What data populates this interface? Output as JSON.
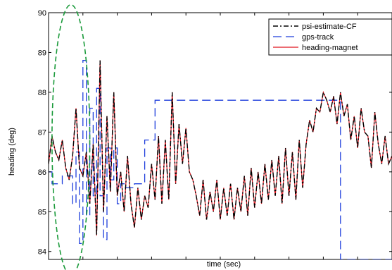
{
  "chart_data": {
    "type": "line",
    "title": "",
    "xlabel": "time (sec)",
    "ylabel": "heading (deg)",
    "xlim": [
      0,
      100
    ],
    "ylim": [
      83.8,
      90
    ],
    "yticks": [
      84,
      85,
      86,
      87,
      88,
      89,
      90
    ],
    "y_tick_labels": [
      "84",
      "85",
      "86",
      "87",
      "88",
      "89",
      "90"
    ],
    "xticks": [
      0,
      10,
      20,
      30,
      40,
      50,
      60,
      70,
      80,
      90,
      100
    ],
    "grid": false,
    "legend_position": "top-right",
    "colors": {
      "psi": "#000000",
      "gps": "#1f3fdc",
      "magnet": "#e0141e",
      "ellipse": "#1a9a3a"
    },
    "series": [
      {
        "name": "psi-estimate-CF",
        "style": "dash-dot",
        "x": [
          0,
          1,
          2,
          3,
          4,
          5,
          6,
          7,
          8,
          9,
          10,
          11,
          12,
          13,
          14,
          15,
          16,
          17,
          18,
          19,
          20,
          21,
          22,
          23,
          24,
          25,
          26,
          27,
          28,
          29,
          30,
          31,
          32,
          33,
          34,
          35,
          36,
          37,
          38,
          39,
          40,
          41,
          42,
          43,
          44,
          45,
          46,
          47,
          48,
          49,
          50,
          51,
          52,
          53,
          54,
          55,
          56,
          57,
          58,
          59,
          60,
          61,
          62,
          63,
          64,
          65,
          66,
          67,
          68,
          69,
          70,
          71,
          72,
          73,
          74,
          75,
          76,
          77,
          78,
          79,
          80,
          81,
          82,
          83,
          84,
          85,
          86,
          87,
          88,
          89,
          90,
          91,
          92,
          93,
          94,
          95,
          96,
          97,
          98,
          99,
          100
        ],
        "values": [
          86.2,
          86.9,
          86.5,
          86.3,
          86.8,
          86.1,
          85.8,
          86.4,
          87.6,
          86.1,
          85.9,
          86.5,
          85.2,
          86.7,
          84.4,
          88.8,
          85.0,
          87.4,
          85.5,
          88.0,
          85.4,
          86.0,
          85.0,
          86.4,
          85.2,
          84.6,
          85.6,
          84.8,
          85.4,
          85.1,
          86.2,
          85.3,
          86.9,
          85.2,
          86.8,
          85.3,
          88.0,
          85.7,
          87.2,
          86.2,
          87.1,
          86.0,
          85.8,
          85.4,
          84.9,
          85.8,
          84.8,
          85.5,
          85.0,
          85.8,
          84.8,
          85.6,
          84.9,
          85.7,
          84.8,
          85.6,
          85.0,
          85.9,
          84.9,
          86.1,
          85.1,
          86.0,
          85.2,
          86.2,
          85.3,
          86.3,
          85.4,
          86.4,
          85.2,
          86.6,
          85.4,
          86.5,
          85.3,
          86.8,
          85.6,
          86.7,
          87.3,
          87.0,
          87.6,
          87.5,
          88.0,
          87.8,
          87.5,
          87.9,
          87.2,
          88.0,
          87.4,
          87.7,
          86.8,
          87.4,
          86.6,
          87.6,
          87.0,
          86.9,
          86.1,
          87.5,
          86.7,
          86.2,
          86.9,
          86.2,
          86.4
        ]
      },
      {
        "name": "gps-track",
        "style": "dashed",
        "x": [
          0,
          1,
          1,
          4,
          4,
          7,
          7,
          8,
          8,
          9,
          9,
          10,
          10,
          11,
          11,
          12,
          12,
          13,
          13,
          14,
          14,
          15,
          15,
          16,
          16,
          17,
          17,
          18,
          18,
          19,
          19,
          20,
          20,
          21,
          21,
          22,
          22,
          25,
          25,
          28,
          28,
          31,
          31,
          36,
          36,
          40,
          40,
          85,
          85,
          100
        ],
        "values": [
          86.0,
          86.0,
          85.7,
          85.7,
          85.9,
          85.9,
          85.2,
          85.2,
          86.5,
          86.5,
          84.2,
          84.2,
          88.8,
          88.8,
          84.9,
          84.9,
          87.6,
          87.6,
          85.4,
          85.4,
          88.1,
          88.1,
          85.4,
          85.4,
          84.3,
          84.3,
          86.6,
          86.6,
          85.8,
          85.8,
          86.6,
          86.6,
          85.2,
          85.2,
          85.7,
          85.7,
          85.6,
          85.6,
          85.7,
          85.7,
          86.8,
          86.8,
          87.8,
          87.8,
          87.8,
          87.8,
          87.8,
          87.8,
          83.8,
          83.8
        ]
      },
      {
        "name": "heading-magnet",
        "style": "solid",
        "x": [
          0,
          1,
          2,
          3,
          4,
          5,
          6,
          7,
          8,
          9,
          10,
          11,
          12,
          13,
          14,
          15,
          16,
          17,
          18,
          19,
          20,
          21,
          22,
          23,
          24,
          25,
          26,
          27,
          28,
          29,
          30,
          31,
          32,
          33,
          34,
          35,
          36,
          37,
          38,
          39,
          40,
          41,
          42,
          43,
          44,
          45,
          46,
          47,
          48,
          49,
          50,
          51,
          52,
          53,
          54,
          55,
          56,
          57,
          58,
          59,
          60,
          61,
          62,
          63,
          64,
          65,
          66,
          67,
          68,
          69,
          70,
          71,
          72,
          73,
          74,
          75,
          76,
          77,
          78,
          79,
          80,
          81,
          82,
          83,
          84,
          85,
          86,
          87,
          88,
          89,
          90,
          91,
          92,
          93,
          94,
          95,
          96,
          97,
          98,
          99,
          100
        ],
        "values": [
          86.2,
          86.9,
          86.5,
          86.3,
          86.8,
          86.1,
          85.8,
          86.4,
          87.6,
          86.1,
          85.9,
          86.5,
          85.2,
          86.7,
          84.4,
          88.8,
          85.0,
          87.4,
          85.5,
          88.0,
          85.4,
          86.0,
          85.0,
          86.4,
          85.2,
          84.6,
          85.6,
          84.8,
          85.4,
          85.1,
          86.2,
          85.3,
          86.9,
          85.2,
          86.8,
          85.3,
          88.0,
          85.7,
          87.2,
          86.2,
          87.1,
          86.0,
          85.8,
          85.4,
          84.9,
          85.8,
          84.8,
          85.5,
          85.0,
          85.8,
          84.8,
          85.6,
          84.9,
          85.7,
          84.8,
          85.6,
          85.0,
          85.9,
          84.9,
          86.1,
          85.1,
          86.0,
          85.2,
          86.2,
          85.3,
          86.3,
          85.4,
          86.4,
          85.2,
          86.6,
          85.4,
          86.5,
          85.3,
          86.8,
          85.6,
          86.7,
          87.3,
          87.0,
          87.6,
          87.5,
          88.0,
          87.8,
          87.5,
          87.9,
          87.2,
          88.0,
          87.4,
          87.7,
          86.8,
          87.4,
          86.6,
          87.6,
          87.0,
          86.9,
          86.1,
          87.5,
          86.7,
          86.2,
          86.9,
          86.2,
          86.4
        ]
      }
    ],
    "annotations": [
      {
        "type": "dashed-ellipse",
        "color": "#1a9a3a",
        "x_range": [
          1,
          12
        ],
        "y_range": [
          83.4,
          90.2
        ]
      }
    ]
  }
}
